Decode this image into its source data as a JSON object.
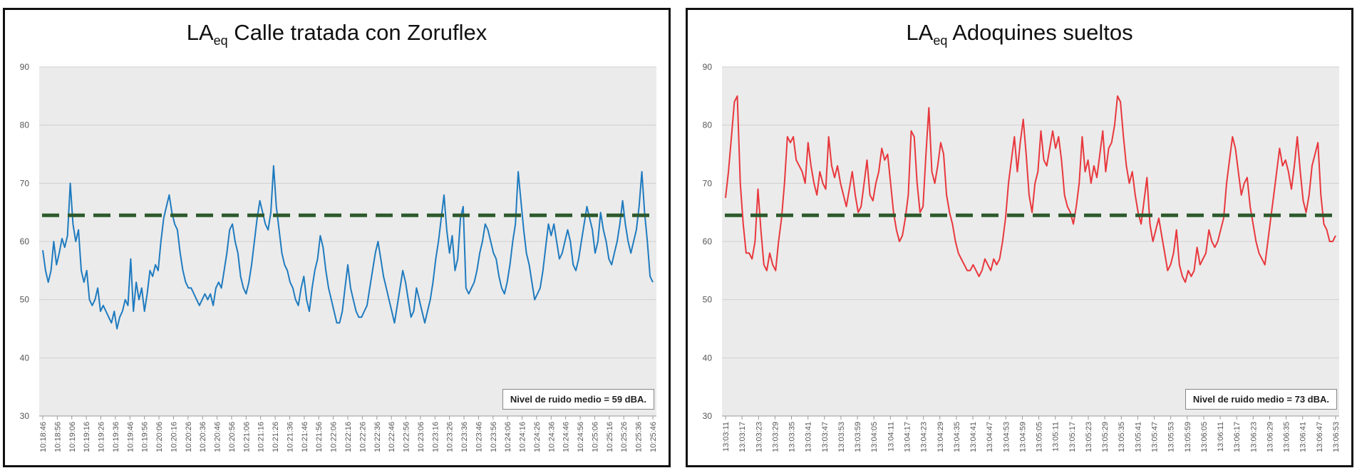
{
  "charts": [
    {
      "title_main": "LA",
      "title_sub": "eq",
      "title_rest": " Calle tratada con Zoruflex",
      "note": "Nivel de ruido medio = 59 dBA."
    },
    {
      "title_main": "LA",
      "title_sub": "eq",
      "title_rest": " Adoquines sueltos",
      "note": "Nivel de ruido medio = 73 dBA."
    }
  ],
  "chart_data": [
    {
      "type": "line",
      "title": "LAeq Calle tratada con Zoruflex",
      "xlabel": "",
      "ylabel": "",
      "ylim": [
        30,
        90
      ],
      "y_ticks": [
        30,
        40,
        50,
        60,
        70,
        80,
        90
      ],
      "grid": true,
      "x_tick_labels": [
        "10:18:46",
        "10:18:56",
        "10:19:06",
        "10:19:16",
        "10:19:26",
        "10:19:36",
        "10:19:46",
        "10:19:56",
        "10:20:06",
        "10:20:16",
        "10:20:26",
        "10:20:36",
        "10:20:46",
        "10:20:56",
        "10:21:06",
        "10:21:16",
        "10:21:26",
        "10:21:36",
        "10:21:46",
        "10:21:56",
        "10:22:06",
        "10:22:16",
        "10:22:26",
        "10:22:36",
        "10:22:46",
        "10:22:56",
        "10:23:06",
        "10:23:16",
        "10:23:26",
        "10:23:36",
        "10:23:46",
        "10:23:56",
        "10:24:06",
        "10:24:16",
        "10:24:26",
        "10:24:36",
        "10:24:46",
        "10:24:56",
        "10:25:06",
        "10:25:16",
        "10:25:26",
        "10:25:36",
        "10:25:46"
      ],
      "series": [
        {
          "color": "#1f7bbf",
          "values": [
            58.5,
            55,
            53,
            55,
            60,
            56,
            58,
            60.5,
            59,
            61,
            70,
            63,
            60,
            62,
            55,
            53,
            55,
            50,
            49,
            50,
            52,
            48,
            49,
            48,
            47,
            46,
            48,
            45,
            47,
            48,
            50,
            49,
            57,
            48,
            53,
            50,
            52,
            48,
            51,
            55,
            54,
            56,
            55,
            60,
            64,
            66,
            68,
            65,
            63,
            62,
            58,
            55,
            53,
            52,
            52,
            51,
            50,
            49,
            50,
            51,
            50,
            51,
            49,
            52,
            53,
            52,
            55,
            58,
            62,
            63,
            60,
            58,
            54,
            52,
            51,
            53,
            56,
            60,
            64,
            67,
            65,
            63,
            62,
            65,
            73,
            66,
            62,
            58,
            56,
            55,
            53,
            52,
            50,
            49,
            52,
            54,
            50,
            48,
            52,
            55,
            57,
            61,
            59,
            55,
            52,
            50,
            48,
            46,
            46,
            48,
            52,
            56,
            52,
            50,
            48,
            47,
            47,
            48,
            49,
            52,
            55,
            58,
            60,
            57,
            54,
            52,
            50,
            48,
            46,
            49,
            52,
            55,
            53,
            50,
            47,
            48,
            52,
            50,
            48,
            46,
            48,
            50,
            53,
            57,
            60,
            64,
            68,
            62,
            58,
            61,
            55,
            57,
            64,
            66,
            52,
            51,
            52,
            53,
            55,
            58,
            60,
            63,
            62,
            60,
            58,
            57,
            54,
            52,
            51,
            53,
            56,
            60,
            63,
            72,
            67,
            62,
            58,
            56,
            53,
            50,
            51,
            52,
            55,
            59,
            63,
            61,
            63,
            60,
            57,
            58,
            60,
            62,
            60,
            56,
            55,
            57,
            60,
            63,
            66,
            64,
            62,
            58,
            60,
            65,
            62,
            60,
            57,
            56,
            58,
            60,
            63,
            67,
            63,
            60,
            58,
            60,
            62,
            66,
            72,
            65,
            60,
            54,
            53
          ]
        }
      ],
      "reference_lines": [
        {
          "y": 64.5,
          "color": "#2d5a2d",
          "style": "dashed"
        }
      ]
    },
    {
      "type": "line",
      "title": "LAeq Adoquines sueltos",
      "xlabel": "",
      "ylabel": "",
      "ylim": [
        30,
        90
      ],
      "y_ticks": [
        30,
        40,
        50,
        60,
        70,
        80,
        90
      ],
      "grid": true,
      "x_tick_labels": [
        "13:03:11",
        "13:03:17",
        "13:03:23",
        "13:03:29",
        "13:03:35",
        "13:03:41",
        "13:03:47",
        "13:03:53",
        "13:03:59",
        "13:04:05",
        "13:04:11",
        "13:04:17",
        "13:04:23",
        "13:04:29",
        "13:04:35",
        "13:04:41",
        "13:04:47",
        "13:04:53",
        "13:04:59",
        "13:05:05",
        "13:05:11",
        "13:05:17",
        "13:05:23",
        "13:05:29",
        "13:05:35",
        "13:05:41",
        "13:05:47",
        "13:05:53",
        "13:05:59",
        "13:06:05",
        "13:06:11",
        "13:06:17",
        "13:06:23",
        "13:06:29",
        "13:06:35",
        "13:06:41",
        "13:06:47",
        "13:06:53"
      ],
      "series": [
        {
          "color": "#e8383d",
          "values": [
            67.5,
            72,
            78,
            84,
            85,
            70,
            63,
            58,
            58,
            57,
            60,
            69,
            62,
            56,
            55,
            58,
            56,
            55,
            60,
            64,
            70,
            78,
            77,
            78,
            74,
            73,
            72,
            70,
            77,
            73,
            70,
            68,
            72,
            70,
            69,
            78,
            73,
            71,
            73,
            70,
            68,
            66,
            69,
            72,
            68,
            65,
            66,
            70,
            74,
            68,
            67,
            70,
            72,
            76,
            74,
            75,
            70,
            65,
            62,
            60,
            61,
            64,
            68,
            79,
            78,
            70,
            65,
            66,
            75,
            83,
            72,
            70,
            73,
            77,
            75,
            68,
            65,
            63,
            60,
            58,
            57,
            56,
            55,
            55,
            56,
            55,
            54,
            55,
            57,
            56,
            55,
            57,
            56,
            57,
            60,
            64,
            70,
            74,
            78,
            72,
            77,
            81,
            75,
            68,
            65,
            70,
            72,
            79,
            74,
            73,
            76,
            79,
            76,
            78,
            74,
            68,
            66,
            65,
            63,
            66,
            70,
            78,
            72,
            74,
            70,
            73,
            71,
            75,
            79,
            72,
            76,
            77,
            80,
            85,
            84,
            78,
            73,
            70,
            72,
            68,
            65,
            63,
            67,
            71,
            63,
            60,
            62,
            64,
            61,
            58,
            55,
            56,
            58,
            62,
            56,
            54,
            53,
            55,
            54,
            55,
            59,
            56,
            57,
            58,
            62,
            60,
            59,
            60,
            62,
            64,
            70,
            74,
            78,
            76,
            72,
            68,
            70,
            71,
            66,
            63,
            60,
            58,
            57,
            56,
            60,
            64,
            68,
            72,
            76,
            73,
            74,
            72,
            69,
            73,
            78,
            72,
            67,
            65,
            68,
            73,
            75,
            77,
            68,
            63,
            62,
            60,
            60,
            61
          ]
        }
      ],
      "reference_lines": [
        {
          "y": 64.5,
          "color": "#2d5a2d",
          "style": "dashed"
        }
      ]
    }
  ]
}
